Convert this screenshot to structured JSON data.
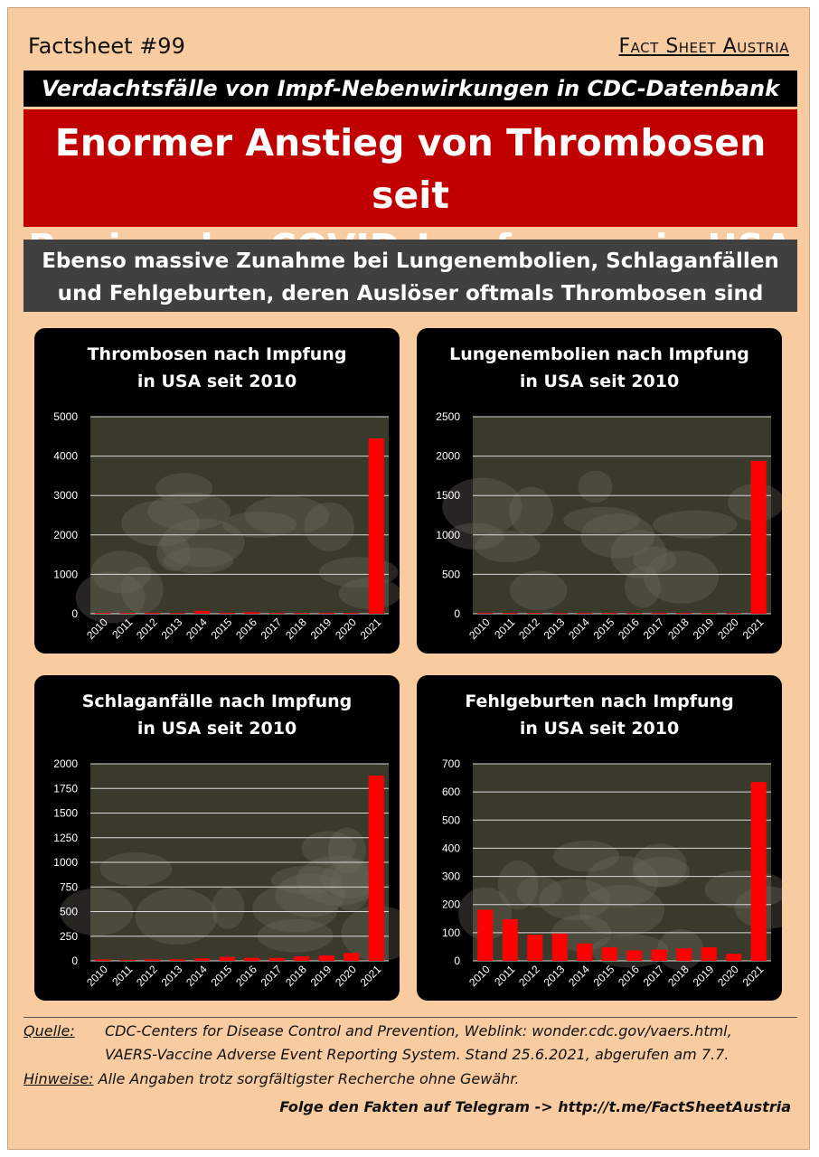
{
  "header": {
    "factsheet_number": "Factsheet #99",
    "brand": "Fact Sheet Austria"
  },
  "kicker": "Verdachtsfälle von Impf-Nebenwirkungen in CDC-Datenbank",
  "headline": {
    "line1": "Enormer Anstieg von Thrombosen seit",
    "line2": "Beginn der COVID-Impfungen in USA"
  },
  "subheadline": {
    "line1": "Ebenso massive Zunahme bei Lungenembolien, Schlaganfällen",
    "line2": "und Fehlgeburten, deren Auslöser oftmals Thrombosen sind"
  },
  "colors": {
    "bar": "#ff0000",
    "panel_background": "#000000",
    "photo_tint": "#3a3a2c",
    "headline_red": "#c00000",
    "page_background": "#f8cba0"
  },
  "chart_data": [
    {
      "type": "bar",
      "title": "Thrombosen nach Impfung in USA seit 2010",
      "title_lines": [
        "Thrombosen nach Impfung",
        "in USA seit 2010"
      ],
      "categories": [
        "2010",
        "2011",
        "2012",
        "2013",
        "2014",
        "2015",
        "2016",
        "2017",
        "2018",
        "2019",
        "2020",
        "2021"
      ],
      "values": [
        22,
        20,
        25,
        18,
        75,
        25,
        40,
        20,
        22,
        22,
        22,
        4450
      ],
      "ylim": [
        0,
        5000
      ],
      "yticks": [
        0,
        1000,
        2000,
        3000,
        4000,
        5000
      ],
      "ytick_labels": [
        "0",
        "1000",
        "2000",
        "3000",
        "4000",
        "5000"
      ],
      "grid": true,
      "background_image": "sheep-flock-photo"
    },
    {
      "type": "bar",
      "title": "Lungenembolien nach Impfung in USA seit 2010",
      "title_lines": [
        "Lungenembolien nach Impfung",
        "in USA seit 2010"
      ],
      "categories": [
        "2010",
        "2011",
        "2012",
        "2013",
        "2014",
        "2015",
        "2016",
        "2017",
        "2018",
        "2019",
        "2020",
        "2021"
      ],
      "values": [
        10,
        10,
        10,
        8,
        10,
        10,
        10,
        10,
        10,
        10,
        10,
        1940
      ],
      "ylim": [
        0,
        2500
      ],
      "yticks": [
        0,
        500,
        1000,
        1500,
        2000,
        2500
      ],
      "ytick_labels": [
        "0",
        "500",
        "1000",
        "1500",
        "2000",
        "2500"
      ],
      "grid": true,
      "background_image": "sheep-herd-photo"
    },
    {
      "type": "bar",
      "title": "Schlaganfälle nach Impfung in USA seit 2010",
      "title_lines": [
        "Schlaganfälle nach Impfung",
        "in USA seit 2010"
      ],
      "categories": [
        "2010",
        "2011",
        "2012",
        "2013",
        "2014",
        "2015",
        "2016",
        "2017",
        "2018",
        "2019",
        "2020",
        "2021"
      ],
      "values": [
        15,
        10,
        15,
        15,
        25,
        40,
        30,
        30,
        45,
        55,
        80,
        1880
      ],
      "ylim": [
        0,
        2000
      ],
      "yticks": [
        0,
        250,
        500,
        750,
        1000,
        1250,
        1500,
        1750,
        2000
      ],
      "ytick_labels": [
        "0",
        "250",
        "500",
        "750",
        "1000",
        "1250",
        "1500",
        "1750",
        "2000"
      ],
      "grid": true,
      "background_image": "grazing-sheep-photo"
    },
    {
      "type": "bar",
      "title": "Fehlgeburten nach Impfung in USA seit 2010",
      "title_lines": [
        "Fehlgeburten nach Impfung",
        "in USA seit 2010"
      ],
      "categories": [
        "2010",
        "2011",
        "2012",
        "2013",
        "2014",
        "2015",
        "2016",
        "2017",
        "2018",
        "2019",
        "2020",
        "2021"
      ],
      "values": [
        182,
        148,
        93,
        97,
        62,
        48,
        37,
        40,
        44,
        48,
        25,
        635
      ],
      "ylim": [
        0,
        700
      ],
      "yticks": [
        0,
        100,
        200,
        300,
        400,
        500,
        600,
        700
      ],
      "ytick_labels": [
        "0",
        "100",
        "200",
        "300",
        "400",
        "500",
        "600",
        "700"
      ],
      "grid": true,
      "background_image": "lamb-photo"
    }
  ],
  "footer": {
    "source_label": "Quelle:",
    "source_line1": "CDC-Centers for Disease Control and Prevention, Weblink: wonder.cdc.gov/vaers.html,",
    "source_line2": "VAERS-Vaccine Adverse Event Reporting System. Stand 25.6.2021, abgerufen am 7.7.",
    "notes_label": "Hinweise:",
    "notes_text": "Alle Angaben trotz sorgfältigster Recherche ohne Gewähr.",
    "telegram": "Folge den Fakten auf Telegram  ->  http://t.me/FactSheetAustria"
  }
}
